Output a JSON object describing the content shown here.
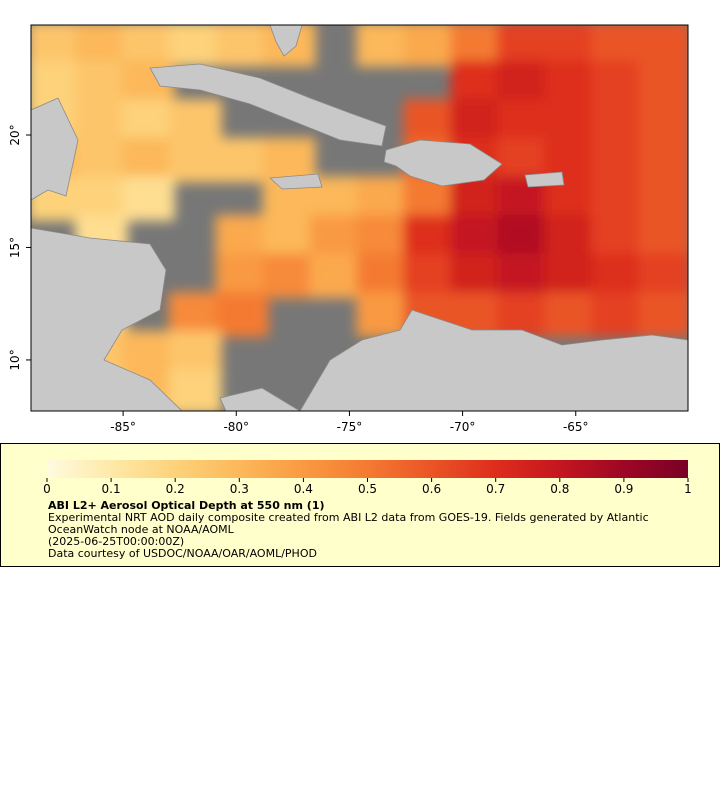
{
  "chart_data": {
    "type": "map",
    "xlim": [
      -89.07,
      -60.04
    ],
    "ylim": [
      7.73,
      24.89
    ],
    "xticks": [
      {
        "value": -85,
        "label": "-85°"
      },
      {
        "value": -80,
        "label": "-80°"
      },
      {
        "value": -75,
        "label": "-75°"
      },
      {
        "value": -70,
        "label": "-70°"
      },
      {
        "value": -65,
        "label": "-65°"
      }
    ],
    "yticks": [
      {
        "value": 10,
        "label": "10°"
      },
      {
        "value": 15,
        "label": "15°"
      },
      {
        "value": 20,
        "label": "20°"
      }
    ],
    "no_data_color": "#777777",
    "land_color": "#c8c8c8",
    "aod": [
      [
        0.25,
        0.3,
        0.25,
        0.2,
        0.25,
        0.3,
        null,
        0.3,
        0.35,
        0.5,
        0.65,
        0.65,
        0.6,
        0.6
      ],
      [
        0.2,
        0.25,
        0.3,
        null,
        null,
        null,
        null,
        null,
        null,
        0.7,
        0.75,
        0.7,
        0.65,
        0.6
      ],
      [
        0.2,
        0.25,
        0.2,
        0.25,
        null,
        null,
        null,
        null,
        0.6,
        0.75,
        0.7,
        0.7,
        0.65,
        0.6
      ],
      [
        0.3,
        0.25,
        0.3,
        0.25,
        0.25,
        0.3,
        null,
        null,
        0.55,
        0.7,
        0.65,
        0.7,
        0.65,
        0.6
      ],
      [
        0.2,
        0.2,
        0.15,
        null,
        null,
        0.3,
        0.3,
        0.35,
        0.5,
        0.75,
        0.8,
        0.7,
        0.65,
        0.6
      ],
      [
        null,
        0.15,
        null,
        null,
        0.35,
        0.3,
        0.4,
        0.45,
        0.7,
        0.8,
        0.85,
        0.75,
        0.65,
        0.6
      ],
      [
        null,
        null,
        null,
        null,
        0.4,
        0.45,
        0.35,
        0.5,
        0.65,
        0.75,
        0.8,
        0.75,
        0.7,
        0.65
      ],
      [
        0.25,
        0.2,
        null,
        0.45,
        0.5,
        null,
        null,
        0.4,
        0.6,
        0.6,
        0.65,
        0.6,
        0.65,
        0.6
      ],
      [
        0.2,
        0.25,
        0.3,
        0.25,
        null,
        null,
        null,
        null,
        null,
        null,
        null,
        null,
        null,
        null
      ],
      [
        0.15,
        0.2,
        0.3,
        0.2,
        null,
        null,
        null,
        null,
        null,
        null,
        null,
        null,
        null,
        null
      ]
    ],
    "colorbar": {
      "clim": [
        0,
        1
      ],
      "ticks": [
        0,
        0.1,
        0.2,
        0.3,
        0.4,
        0.5,
        0.6,
        0.7,
        0.8,
        0.9,
        1
      ],
      "colormap": [
        "#fffbe0",
        "#fee9a8",
        "#fdd27a",
        "#fcb85a",
        "#f99a42",
        "#f47a32",
        "#ea5426",
        "#de2d1c",
        "#c41620",
        "#9d0724",
        "#7a0026"
      ]
    },
    "title": "ABI L2+ Aerosol Optical Depth at 550 nm (1)",
    "description": "Experimental NRT AOD daily composite created from ABI L2 data from GOES-19. Fields generated by Atlantic OceanWatch node at NOAA/AOML",
    "time": "(2025-06-25T00:00:00Z)",
    "credit": "Data courtesy of USDOC/NOAA/OAR/AOML/PHOD"
  }
}
